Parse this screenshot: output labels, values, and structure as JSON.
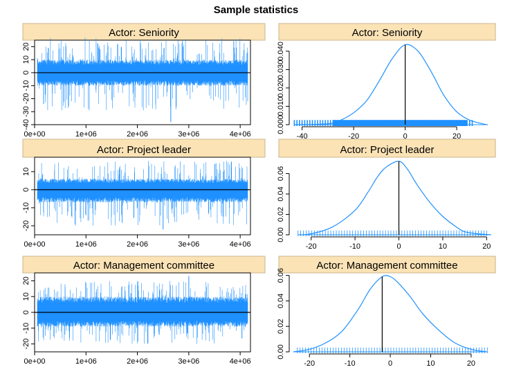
{
  "title": "Sample statistics",
  "colors": {
    "series": "#1E90FF",
    "strip": "#FBE3B6",
    "axis": "#000000"
  },
  "chart_data": [
    {
      "type": "line",
      "panel": "Actor: Seniority",
      "xlim": [
        0,
        4200000
      ],
      "ylim": [
        -40,
        25
      ],
      "xticks": [
        0,
        1000000,
        2000000,
        3000000,
        4000000
      ],
      "xtick_labels": [
        "0e+00",
        "1e+06",
        "2e+06",
        "3e+06",
        "4e+06"
      ],
      "yticks": [
        -40,
        -30,
        -20,
        -10,
        0,
        10,
        20
      ],
      "ytick_labels": [
        "-40",
        "-30",
        "-20",
        "-10",
        "0",
        "10",
        "20"
      ],
      "hline": 0,
      "band": [
        -10,
        10
      ],
      "spike": [
        -29,
        27
      ],
      "extreme": [
        2650000,
        -38
      ]
    },
    {
      "type": "line",
      "panel": "Actor: Seniority",
      "xlim": [
        -45,
        35
      ],
      "ylim": [
        0,
        0.046
      ],
      "xticks": [
        -40,
        -20,
        0,
        20
      ],
      "xtick_labels": [
        "-40",
        "-20",
        "0",
        "20"
      ],
      "yticks": [
        0,
        0.01,
        0.02,
        0.03,
        0.04
      ],
      "ytick_labels": [
        "0.000",
        "0.010",
        "0.020",
        "0.030",
        "0.040"
      ],
      "x": [
        -43,
        -30,
        -25,
        -20,
        -15,
        -10,
        -5,
        0,
        5,
        10,
        15,
        20,
        25,
        30,
        32
      ],
      "y": [
        0,
        0.0005,
        0.0025,
        0.0065,
        0.013,
        0.024,
        0.036,
        0.0435,
        0.04,
        0.029,
        0.016,
        0.007,
        0.0025,
        0.0005,
        0
      ],
      "vline": 0,
      "rug": [
        -43,
        -30,
        26
      ]
    },
    {
      "type": "line",
      "panel": "Actor: Project leader",
      "xlim": [
        0,
        4200000
      ],
      "ylim": [
        -25,
        18
      ],
      "xticks": [
        0,
        1000000,
        2000000,
        3000000,
        4000000
      ],
      "xtick_labels": [
        "0e+00",
        "1e+06",
        "2e+06",
        "3e+06",
        "4e+06"
      ],
      "yticks": [
        -20,
        -10,
        0,
        10
      ],
      "ytick_labels": [
        "-20",
        "-10",
        "0",
        "10"
      ],
      "hline": 0,
      "band": [
        -7,
        6
      ],
      "spike": [
        -20,
        16
      ],
      "extreme": [
        2500000,
        -22
      ]
    },
    {
      "type": "line",
      "panel": "Actor: Project leader",
      "xlim": [
        -25,
        22
      ],
      "ylim": [
        0,
        0.076
      ],
      "xticks": [
        -20,
        -10,
        0,
        10,
        20
      ],
      "xtick_labels": [
        "-20",
        "-10",
        "0",
        "10",
        "20"
      ],
      "yticks": [
        0,
        0.02,
        0.04,
        0.06
      ],
      "ytick_labels": [
        "0.00",
        "0.02",
        "0.04",
        "0.06"
      ],
      "x": [
        -23,
        -20,
        -15,
        -10,
        -7,
        -5,
        -3,
        0,
        2,
        4,
        7,
        10,
        13,
        15,
        18,
        21
      ],
      "y": [
        0,
        0.001,
        0.008,
        0.024,
        0.042,
        0.056,
        0.066,
        0.072,
        0.064,
        0.05,
        0.032,
        0.018,
        0.008,
        0.003,
        0.001,
        0
      ],
      "vline": 0,
      "rug": [
        -23,
        20
      ]
    },
    {
      "type": "line",
      "panel": "Actor: Management committee",
      "xlim": [
        0,
        4200000
      ],
      "ylim": [
        -25,
        25
      ],
      "xticks": [
        0,
        1000000,
        2000000,
        3000000,
        4000000
      ],
      "xtick_labels": [
        "0e+00",
        "1e+06",
        "2e+06",
        "3e+06",
        "4e+06"
      ],
      "yticks": [
        -20,
        -10,
        0,
        10,
        20
      ],
      "ytick_labels": [
        "-20",
        "-10",
        "0",
        "10",
        "20"
      ],
      "hline": 0,
      "band": [
        -9,
        10
      ],
      "spike": [
        -20,
        20
      ],
      "extreme": [
        3000000,
        23
      ]
    },
    {
      "type": "line",
      "panel": "Actor: Management committee",
      "xlim": [
        -25,
        26
      ],
      "ylim": [
        0,
        0.062
      ],
      "xticks": [
        -20,
        -10,
        0,
        10,
        20
      ],
      "xtick_labels": [
        "-20",
        "-10",
        "0",
        "10",
        "20"
      ],
      "yticks": [
        0,
        0.02,
        0.04,
        0.06
      ],
      "ytick_labels": [
        "0.00",
        "0.02",
        "0.04",
        "0.06"
      ],
      "x": [
        -24,
        -20,
        -16,
        -12,
        -8,
        -5,
        -2,
        0,
        2,
        5,
        8,
        12,
        16,
        20,
        24
      ],
      "y": [
        0,
        0.002,
        0.007,
        0.016,
        0.033,
        0.049,
        0.059,
        0.059,
        0.054,
        0.043,
        0.03,
        0.017,
        0.007,
        0.002,
        0
      ],
      "vline": -2,
      "rug": [
        -23,
        24
      ]
    }
  ]
}
